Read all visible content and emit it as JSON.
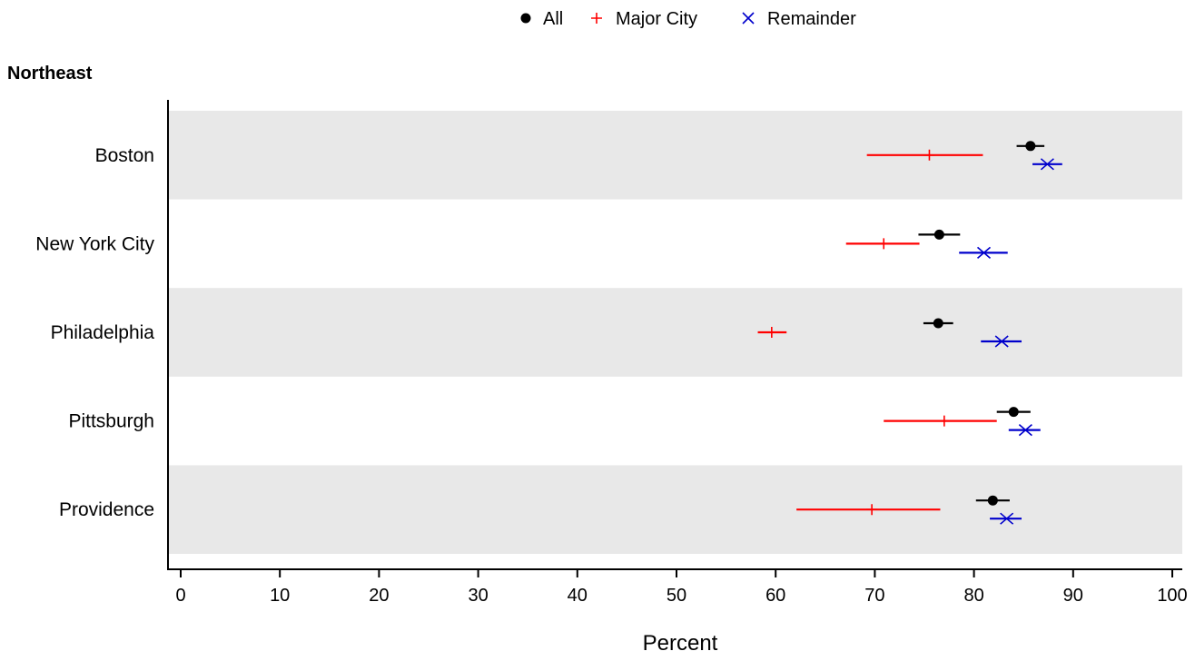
{
  "chart_data": {
    "type": "scatter",
    "subtype": "dot-plot-with-intervals",
    "panel_title": "Northeast",
    "xlabel": "Percent",
    "xlim": [
      0,
      100
    ],
    "xticks": [
      0,
      10,
      20,
      30,
      40,
      50,
      60,
      70,
      80,
      90,
      100
    ],
    "categories": [
      "Boston",
      "New York City",
      "Philadelphia",
      "Pittsburgh",
      "Providence"
    ],
    "band_shading": "alternating light gray",
    "legend_position": "top-center",
    "series": [
      {
        "name": "All",
        "marker": "dot",
        "color": "#000000",
        "points": [
          {
            "category": "Boston",
            "value": 85.7,
            "low": 84.3,
            "high": 87.1
          },
          {
            "category": "New York City",
            "value": 76.5,
            "low": 74.4,
            "high": 78.6
          },
          {
            "category": "Philadelphia",
            "value": 76.4,
            "low": 74.9,
            "high": 77.9
          },
          {
            "category": "Pittsburgh",
            "value": 84.0,
            "low": 82.3,
            "high": 85.7
          },
          {
            "category": "Providence",
            "value": 81.9,
            "low": 80.2,
            "high": 83.6
          }
        ]
      },
      {
        "name": "Major City",
        "marker": "plus",
        "color": "#ff0000",
        "points": [
          {
            "category": "Boston",
            "value": 75.5,
            "low": 69.2,
            "high": 80.9
          },
          {
            "category": "New York City",
            "value": 70.9,
            "low": 67.1,
            "high": 74.5
          },
          {
            "category": "Philadelphia",
            "value": 59.6,
            "low": 58.2,
            "high": 61.1
          },
          {
            "category": "Pittsburgh",
            "value": 77.0,
            "low": 70.9,
            "high": 82.3
          },
          {
            "category": "Providence",
            "value": 69.7,
            "low": 62.1,
            "high": 76.6
          }
        ]
      },
      {
        "name": "Remainder",
        "marker": "x",
        "color": "#0000cc",
        "points": [
          {
            "category": "Boston",
            "value": 87.4,
            "low": 85.9,
            "high": 88.9
          },
          {
            "category": "New York City",
            "value": 81.0,
            "low": 78.5,
            "high": 83.4
          },
          {
            "category": "Philadelphia",
            "value": 82.8,
            "low": 80.7,
            "high": 84.8
          },
          {
            "category": "Pittsburgh",
            "value": 85.2,
            "low": 83.5,
            "high": 86.7
          },
          {
            "category": "Providence",
            "value": 83.3,
            "low": 81.6,
            "high": 84.8
          }
        ]
      }
    ]
  }
}
